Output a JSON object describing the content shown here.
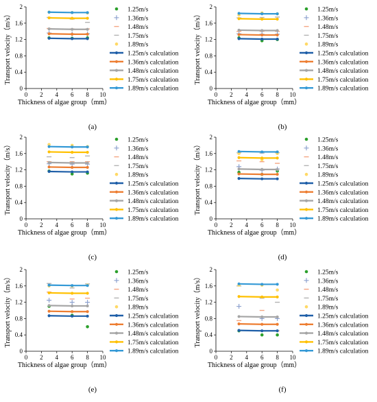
{
  "figure": {
    "xlabel": "Thickness of algae group（mm）",
    "ylabel": "Transport velocity（m/s）",
    "xlim": [
      0,
      10
    ],
    "ylim": [
      0,
      2
    ],
    "xticks": [
      "0",
      "2",
      "4",
      "6",
      "8",
      "10"
    ],
    "yticks": [
      "0",
      "0.4",
      "0.8",
      "1.2",
      "1.6",
      "2"
    ],
    "legend": [
      {
        "label": "1.25m/s",
        "kind": "marker",
        "marker": "dot",
        "color": "#2ca02c"
      },
      {
        "label": "1.36m/s",
        "kind": "marker",
        "marker": "plus",
        "color": "#8ea2cf"
      },
      {
        "label": "1.48m/s",
        "kind": "marker",
        "marker": "dash",
        "color": "#f4a582"
      },
      {
        "label": "1.75m/s",
        "kind": "marker",
        "marker": "dash",
        "color": "#b3b3b3"
      },
      {
        "label": "1.89m/s",
        "kind": "marker",
        "marker": "dot",
        "color": "#ffd966"
      },
      {
        "label": "1.25m/s calculation",
        "kind": "line",
        "color": "#1f5fa8"
      },
      {
        "label": "1.36m/s calculation",
        "kind": "line",
        "color": "#ed7d31"
      },
      {
        "label": "1.48m/s calculation",
        "kind": "line",
        "color": "#a5a5a5"
      },
      {
        "label": "1.75m/s calculation",
        "kind": "line",
        "color": "#ffc000"
      },
      {
        "label": "1.89m/s calculation",
        "kind": "line",
        "color": "#3399d6"
      }
    ]
  },
  "chart_data": [
    {
      "type": "scatter",
      "panel_label": "(a)",
      "x": [
        3,
        6,
        8
      ],
      "series": [
        {
          "name": "1.25m/s",
          "values": [
            1.24,
            1.23,
            1.24
          ]
        },
        {
          "name": "1.36m/s",
          "values": [
            1.36,
            1.34,
            1.34
          ]
        },
        {
          "name": "1.48m/s",
          "values": [
            1.47,
            1.46,
            1.46
          ]
        },
        {
          "name": "1.75m/s",
          "values": [
            1.74,
            1.7,
            1.62
          ]
        },
        {
          "name": "1.89m/s",
          "values": [
            1.87,
            1.86,
            1.85
          ]
        },
        {
          "name": "1.25m/s calculation",
          "values": [
            1.23,
            1.22,
            1.22
          ]
        },
        {
          "name": "1.36m/s calculation",
          "values": [
            1.34,
            1.33,
            1.33
          ]
        },
        {
          "name": "1.48m/s calculation",
          "values": [
            1.46,
            1.45,
            1.45
          ]
        },
        {
          "name": "1.75m/s calculation",
          "values": [
            1.73,
            1.72,
            1.72
          ]
        },
        {
          "name": "1.89m/s calculation",
          "values": [
            1.87,
            1.86,
            1.86
          ]
        }
      ]
    },
    {
      "type": "scatter",
      "panel_label": "(b)",
      "x": [
        3,
        6,
        8
      ],
      "series": [
        {
          "name": "1.25m/s",
          "values": [
            1.24,
            1.17,
            1.2
          ]
        },
        {
          "name": "1.36m/s",
          "values": [
            1.34,
            1.33,
            1.33
          ]
        },
        {
          "name": "1.48m/s",
          "values": [
            1.4,
            1.4,
            1.4
          ]
        },
        {
          "name": "1.75m/s",
          "values": [
            1.73,
            1.74,
            1.75
          ]
        },
        {
          "name": "1.89m/s",
          "values": [
            1.8,
            1.85,
            1.83
          ]
        },
        {
          "name": "1.25m/s calculation",
          "values": [
            1.22,
            1.21,
            1.21
          ]
        },
        {
          "name": "1.36m/s calculation",
          "values": [
            1.32,
            1.31,
            1.31
          ]
        },
        {
          "name": "1.48m/s calculation",
          "values": [
            1.43,
            1.42,
            1.42
          ]
        },
        {
          "name": "1.75m/s calculation",
          "values": [
            1.71,
            1.7,
            1.7
          ]
        },
        {
          "name": "1.89m/s calculation",
          "values": [
            1.84,
            1.83,
            1.83
          ]
        }
      ]
    },
    {
      "type": "scatter",
      "panel_label": "(c)",
      "x": [
        3,
        6,
        8
      ],
      "series": [
        {
          "name": "1.25m/s",
          "values": [
            1.17,
            1.1,
            1.12
          ]
        },
        {
          "name": "1.36m/s",
          "values": [
            1.35,
            1.34,
            1.34
          ]
        },
        {
          "name": "1.48m/s",
          "values": [
            1.4,
            1.4,
            1.4
          ]
        },
        {
          "name": "1.75m/s",
          "values": [
            1.52,
            1.5,
            1.54
          ]
        },
        {
          "name": "1.89m/s",
          "values": [
            1.82,
            1.8,
            1.77
          ]
        },
        {
          "name": "1.25m/s calculation",
          "values": [
            1.16,
            1.15,
            1.15
          ]
        },
        {
          "name": "1.36m/s calculation",
          "values": [
            1.27,
            1.26,
            1.26
          ]
        },
        {
          "name": "1.48m/s calculation",
          "values": [
            1.38,
            1.37,
            1.37
          ]
        },
        {
          "name": "1.75m/s calculation",
          "values": [
            1.64,
            1.63,
            1.63
          ]
        },
        {
          "name": "1.89m/s calculation",
          "values": [
            1.77,
            1.76,
            1.76
          ]
        }
      ]
    },
    {
      "type": "scatter",
      "panel_label": "(d)",
      "x": [
        3,
        6,
        8
      ],
      "series": [
        {
          "name": "1.25m/s",
          "values": [
            1.14,
            1.09,
            1.17
          ]
        },
        {
          "name": "1.36m/s",
          "values": [
            1.28,
            1.19,
            1.22
          ]
        },
        {
          "name": "1.48m/s",
          "values": [
            1.42,
            1.4,
            1.36
          ]
        },
        {
          "name": "1.75m/s",
          "values": [
            1.62,
            1.61,
            1.62
          ]
        },
        {
          "name": "1.89m/s",
          "values": [
            1.6,
            1.45,
            1.6
          ]
        },
        {
          "name": "1.25m/s calculation",
          "values": [
            0.99,
            0.98,
            0.98
          ]
        },
        {
          "name": "1.36m/s calculation",
          "values": [
            1.1,
            1.09,
            1.09
          ]
        },
        {
          "name": "1.48m/s calculation",
          "values": [
            1.22,
            1.21,
            1.21
          ]
        },
        {
          "name": "1.75m/s calculation",
          "values": [
            1.5,
            1.49,
            1.49
          ]
        },
        {
          "name": "1.89m/s calculation",
          "values": [
            1.65,
            1.64,
            1.64
          ]
        }
      ]
    },
    {
      "type": "scatter",
      "panel_label": "(e)",
      "x": [
        3,
        6,
        8
      ],
      "series": [
        {
          "name": "1.25m/s",
          "values": [
            1.1,
            0.88,
            0.6
          ]
        },
        {
          "name": "1.36m/s",
          "values": [
            1.25,
            1.2,
            1.2
          ]
        },
        {
          "name": "1.48m/s",
          "values": [
            1.45,
            1.28,
            1.3
          ]
        },
        {
          "name": "1.75m/s",
          "values": [
            1.66,
            1.55,
            1.65
          ]
        },
        {
          "name": "1.89m/s",
          "values": [
            1.6,
            1.6,
            1.62
          ]
        },
        {
          "name": "1.25m/s calculation",
          "values": [
            0.87,
            0.86,
            0.86
          ]
        },
        {
          "name": "1.36m/s calculation",
          "values": [
            0.98,
            0.97,
            0.97
          ]
        },
        {
          "name": "1.48m/s calculation",
          "values": [
            1.12,
            1.11,
            1.11
          ]
        },
        {
          "name": "1.75m/s calculation",
          "values": [
            1.43,
            1.42,
            1.42
          ]
        },
        {
          "name": "1.89m/s calculation",
          "values": [
            1.62,
            1.61,
            1.61
          ]
        }
      ]
    },
    {
      "type": "scatter",
      "panel_label": "(f)",
      "x": [
        3,
        6,
        8
      ],
      "series": [
        {
          "name": "1.25m/s",
          "values": [
            0.5,
            0.4,
            0.4
          ]
        },
        {
          "name": "1.36m/s",
          "values": [
            1.1,
            0.8,
            0.8
          ]
        },
        {
          "name": "1.48m/s",
          "values": [
            0.75,
            1.0,
            0.5
          ]
        },
        {
          "name": "1.75m/s",
          "values": [
            1.6,
            1.3,
            1.2
          ]
        },
        {
          "name": "1.89m/s",
          "values": [
            1.62,
            1.62,
            1.5
          ]
        },
        {
          "name": "1.25m/s calculation",
          "values": [
            0.51,
            0.5,
            0.5
          ]
        },
        {
          "name": "1.36m/s calculation",
          "values": [
            0.67,
            0.66,
            0.66
          ]
        },
        {
          "name": "1.48m/s calculation",
          "values": [
            0.85,
            0.84,
            0.84
          ]
        },
        {
          "name": "1.75m/s calculation",
          "values": [
            1.34,
            1.33,
            1.33
          ]
        },
        {
          "name": "1.89m/s calculation",
          "values": [
            1.65,
            1.64,
            1.64
          ]
        }
      ]
    }
  ]
}
